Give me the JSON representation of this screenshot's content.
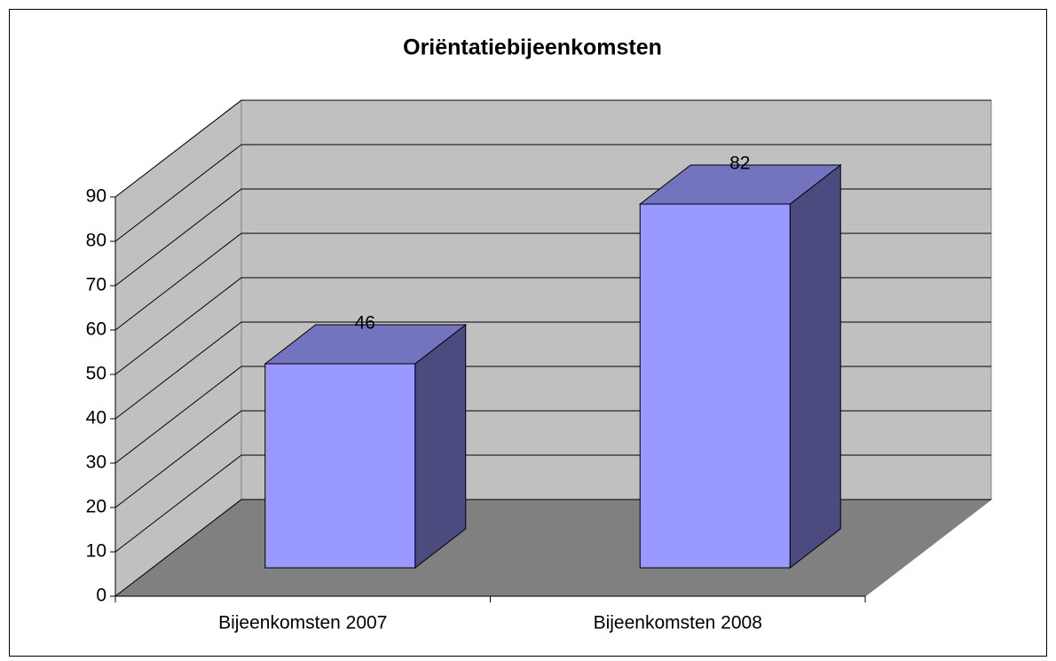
{
  "chart_data": {
    "type": "bar",
    "title": "Oriëntatiebijeenkomsten",
    "categories": [
      "Bijeenkomsten 2007",
      "Bijeenkomsten 2008"
    ],
    "values": [
      46,
      82
    ],
    "color": "#9999ff",
    "ylim": [
      0,
      90
    ],
    "yticks": [
      0,
      10,
      20,
      30,
      40,
      50,
      60,
      70,
      80,
      90
    ],
    "grid": true
  }
}
